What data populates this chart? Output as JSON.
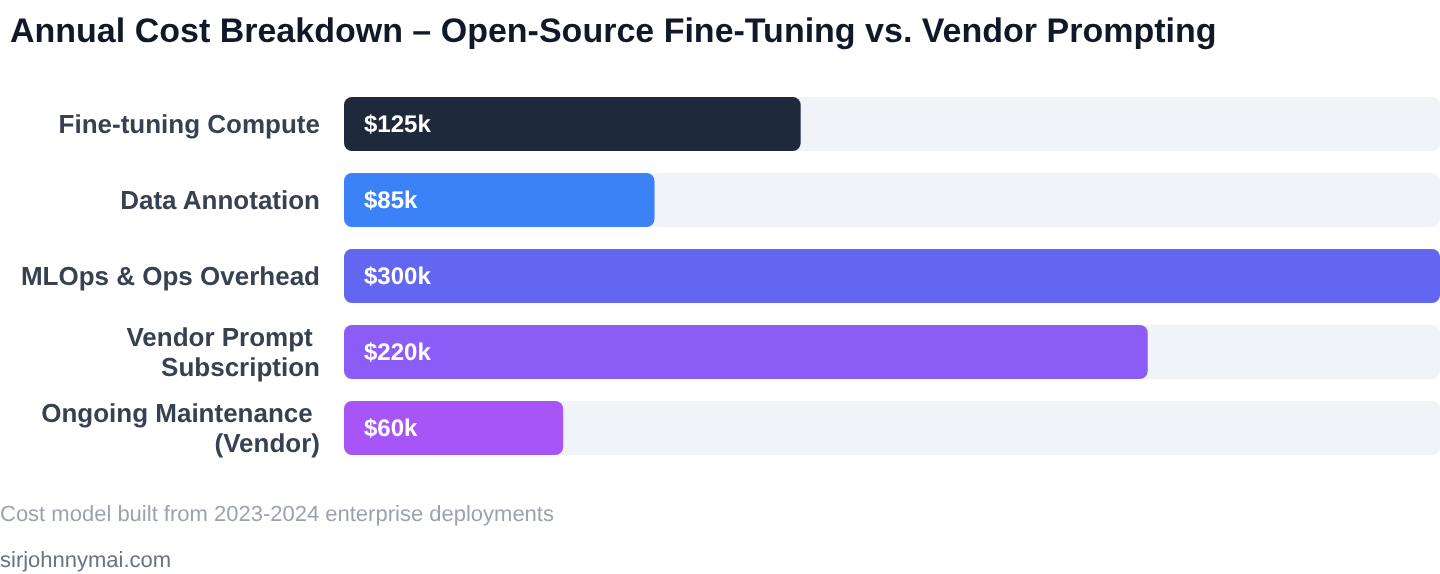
{
  "chart_data": {
    "type": "bar",
    "orientation": "horizontal",
    "title": "Annual Cost Breakdown – Open-Source Fine-Tuning vs. Vendor Prompting",
    "categories": [
      "Fine-tuning Compute",
      "Data Annotation",
      "MLOps & Ops Overhead",
      "Vendor Prompt Subscription",
      "Ongoing Maintenance (Vendor)"
    ],
    "values": [
      125,
      85,
      300,
      220,
      60
    ],
    "value_labels": [
      "$125k",
      "$85k",
      "$300k",
      "$220k",
      "$60k"
    ],
    "colors": [
      "#1e293b",
      "#3b82f6",
      "#6366f1",
      "#8b5cf6",
      "#a855f7"
    ],
    "xlim": [
      0,
      300
    ],
    "tick_labels": "y",
    "annotations": [
      "Cost model built from 2023-2024 enterprise deployments",
      "sirjohnnymai.com"
    ]
  }
}
